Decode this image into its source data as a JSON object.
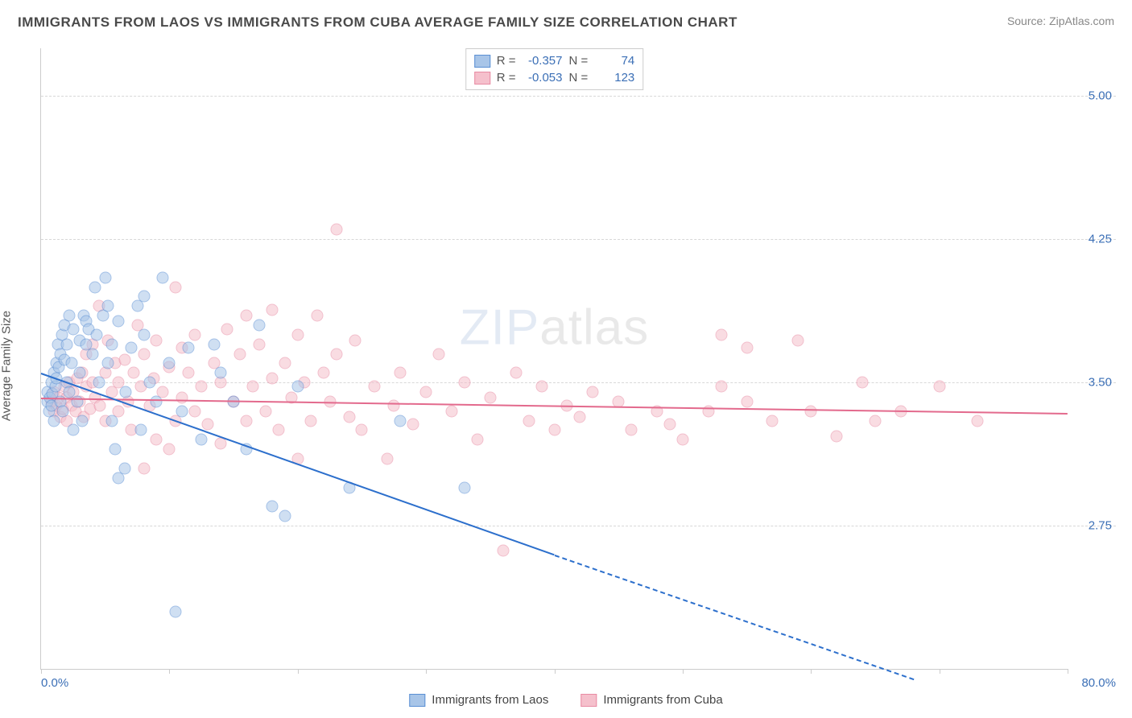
{
  "title": "IMMIGRANTS FROM LAOS VS IMMIGRANTS FROM CUBA AVERAGE FAMILY SIZE CORRELATION CHART",
  "source_prefix": "Source: ",
  "source_name": "ZipAtlas.com",
  "ylabel": "Average Family Size",
  "watermark_a": "ZIP",
  "watermark_b": "atlas",
  "chart": {
    "type": "scatter",
    "xlim": [
      0,
      80
    ],
    "ylim": [
      2.0,
      5.25
    ],
    "xtick_label_left": "0.0%",
    "xtick_label_right": "80.0%",
    "xtick_positions": [
      0,
      10,
      20,
      30,
      40,
      50,
      60,
      70,
      80
    ],
    "ytick_positions": [
      2.75,
      3.5,
      4.25,
      5.0
    ],
    "ytick_labels": [
      "2.75",
      "3.50",
      "4.25",
      "5.00"
    ],
    "grid_color": "#d8d8d8",
    "axis_color": "#cccccc",
    "background_color": "#ffffff",
    "tick_label_color": "#3b6fb6",
    "label_color": "#555555",
    "marker_size": 15,
    "marker_opacity": 0.55
  },
  "series": [
    {
      "name": "Immigrants from Laos",
      "color_fill": "#a8c5e8",
      "color_stroke": "#5a8fd4",
      "trend_color": "#2c6fcc",
      "R": "-0.357",
      "N": "74",
      "trend": {
        "x1": 0,
        "y1": 3.55,
        "x2": 40,
        "y2": 2.6,
        "x2_dash": 68,
        "y2_dash": 1.95
      },
      "points": [
        [
          0.5,
          3.4
        ],
        [
          0.5,
          3.45
        ],
        [
          0.6,
          3.35
        ],
        [
          0.7,
          3.42
        ],
        [
          0.8,
          3.5
        ],
        [
          0.8,
          3.38
        ],
        [
          0.9,
          3.44
        ],
        [
          1.0,
          3.55
        ],
        [
          1.0,
          3.3
        ],
        [
          1.1,
          3.48
        ],
        [
          1.2,
          3.6
        ],
        [
          1.2,
          3.52
        ],
        [
          1.3,
          3.7
        ],
        [
          1.4,
          3.58
        ],
        [
          1.5,
          3.4
        ],
        [
          1.5,
          3.65
        ],
        [
          1.6,
          3.75
        ],
        [
          1.7,
          3.35
        ],
        [
          1.8,
          3.62
        ],
        [
          1.8,
          3.8
        ],
        [
          2.0,
          3.5
        ],
        [
          2.0,
          3.7
        ],
        [
          2.2,
          3.85
        ],
        [
          2.2,
          3.45
        ],
        [
          2.4,
          3.6
        ],
        [
          2.5,
          3.25
        ],
        [
          2.5,
          3.78
        ],
        [
          2.8,
          3.4
        ],
        [
          3.0,
          3.55
        ],
        [
          3.0,
          3.72
        ],
        [
          3.2,
          3.3
        ],
        [
          3.3,
          3.85
        ],
        [
          3.5,
          3.7
        ],
        [
          3.5,
          3.82
        ],
        [
          3.7,
          3.78
        ],
        [
          4.0,
          3.65
        ],
        [
          4.2,
          4.0
        ],
        [
          4.3,
          3.75
        ],
        [
          4.5,
          3.5
        ],
        [
          4.8,
          3.85
        ],
        [
          5.0,
          4.05
        ],
        [
          5.2,
          3.6
        ],
        [
          5.2,
          3.9
        ],
        [
          5.5,
          3.3
        ],
        [
          5.5,
          3.7
        ],
        [
          5.8,
          3.15
        ],
        [
          6.0,
          3.82
        ],
        [
          6.0,
          3.0
        ],
        [
          6.5,
          3.05
        ],
        [
          6.6,
          3.45
        ],
        [
          7.0,
          3.68
        ],
        [
          7.5,
          3.9
        ],
        [
          7.8,
          3.25
        ],
        [
          8.0,
          3.75
        ],
        [
          8.0,
          3.95
        ],
        [
          8.5,
          3.5
        ],
        [
          9.0,
          3.4
        ],
        [
          9.5,
          4.05
        ],
        [
          10.0,
          3.6
        ],
        [
          10.5,
          2.3
        ],
        [
          11.0,
          3.35
        ],
        [
          11.5,
          3.68
        ],
        [
          12.5,
          3.2
        ],
        [
          13.5,
          3.7
        ],
        [
          14.0,
          3.55
        ],
        [
          15.0,
          3.4
        ],
        [
          16.0,
          3.15
        ],
        [
          17.0,
          3.8
        ],
        [
          18.0,
          2.85
        ],
        [
          19.0,
          2.8
        ],
        [
          20.0,
          3.48
        ],
        [
          24.0,
          2.95
        ],
        [
          28.0,
          3.3
        ],
        [
          33.0,
          2.95
        ]
      ]
    },
    {
      "name": "Immigrants from Cuba",
      "color_fill": "#f5c0cc",
      "color_stroke": "#e88ba3",
      "trend_color": "#e36a8d",
      "R": "-0.053",
      "N": "123",
      "trend": {
        "x1": 0,
        "y1": 3.42,
        "x2": 80,
        "y2": 3.34
      },
      "points": [
        [
          0.8,
          3.4
        ],
        [
          1.0,
          3.35
        ],
        [
          1.0,
          3.45
        ],
        [
          1.2,
          3.38
        ],
        [
          1.4,
          3.42
        ],
        [
          1.5,
          3.32
        ],
        [
          1.7,
          3.36
        ],
        [
          1.8,
          3.48
        ],
        [
          2.0,
          3.3
        ],
        [
          2.0,
          3.42
        ],
        [
          2.2,
          3.5
        ],
        [
          2.4,
          3.38
        ],
        [
          2.5,
          3.45
        ],
        [
          2.7,
          3.35
        ],
        [
          2.8,
          3.52
        ],
        [
          3.0,
          3.4
        ],
        [
          3.2,
          3.55
        ],
        [
          3.3,
          3.32
        ],
        [
          3.5,
          3.48
        ],
        [
          3.5,
          3.65
        ],
        [
          3.8,
          3.36
        ],
        [
          4.0,
          3.5
        ],
        [
          4.0,
          3.7
        ],
        [
          4.2,
          3.42
        ],
        [
          4.5,
          3.9
        ],
        [
          4.6,
          3.38
        ],
        [
          5.0,
          3.55
        ],
        [
          5.0,
          3.3
        ],
        [
          5.2,
          3.72
        ],
        [
          5.5,
          3.45
        ],
        [
          5.8,
          3.6
        ],
        [
          6.0,
          3.35
        ],
        [
          6.0,
          3.5
        ],
        [
          6.5,
          3.62
        ],
        [
          6.8,
          3.4
        ],
        [
          7.0,
          3.25
        ],
        [
          7.2,
          3.55
        ],
        [
          7.5,
          3.8
        ],
        [
          7.8,
          3.48
        ],
        [
          8.0,
          3.65
        ],
        [
          8.0,
          3.05
        ],
        [
          8.5,
          3.38
        ],
        [
          8.8,
          3.52
        ],
        [
          9.0,
          3.2
        ],
        [
          9.0,
          3.72
        ],
        [
          9.5,
          3.45
        ],
        [
          10.0,
          3.58
        ],
        [
          10.0,
          3.15
        ],
        [
          10.5,
          3.3
        ],
        [
          10.5,
          4.0
        ],
        [
          11.0,
          3.68
        ],
        [
          11.0,
          3.42
        ],
        [
          11.5,
          3.55
        ],
        [
          12.0,
          3.35
        ],
        [
          12.0,
          3.75
        ],
        [
          12.5,
          3.48
        ],
        [
          13.0,
          3.28
        ],
        [
          13.5,
          3.6
        ],
        [
          14.0,
          3.18
        ],
        [
          14.0,
          3.5
        ],
        [
          14.5,
          3.78
        ],
        [
          15.0,
          3.4
        ],
        [
          15.5,
          3.65
        ],
        [
          16.0,
          3.3
        ],
        [
          16.0,
          3.85
        ],
        [
          16.5,
          3.48
        ],
        [
          17.0,
          3.7
        ],
        [
          17.5,
          3.35
        ],
        [
          18.0,
          3.52
        ],
        [
          18.0,
          3.88
        ],
        [
          18.5,
          3.25
        ],
        [
          19.0,
          3.6
        ],
        [
          19.5,
          3.42
        ],
        [
          20.0,
          3.75
        ],
        [
          20.0,
          3.1
        ],
        [
          20.5,
          3.5
        ],
        [
          21.0,
          3.3
        ],
        [
          21.5,
          3.85
        ],
        [
          22.0,
          3.55
        ],
        [
          22.5,
          3.4
        ],
        [
          23.0,
          4.3
        ],
        [
          23.0,
          3.65
        ],
        [
          24.0,
          3.32
        ],
        [
          24.5,
          3.72
        ],
        [
          25.0,
          3.25
        ],
        [
          26.0,
          3.48
        ],
        [
          27.0,
          3.1
        ],
        [
          27.5,
          3.38
        ],
        [
          28.0,
          3.55
        ],
        [
          29.0,
          3.28
        ],
        [
          30.0,
          3.45
        ],
        [
          31.0,
          3.65
        ],
        [
          32.0,
          3.35
        ],
        [
          33.0,
          3.5
        ],
        [
          34.0,
          3.2
        ],
        [
          35.0,
          3.42
        ],
        [
          36.0,
          2.62
        ],
        [
          37.0,
          3.55
        ],
        [
          38.0,
          3.3
        ],
        [
          39.0,
          3.48
        ],
        [
          40.0,
          3.25
        ],
        [
          41.0,
          3.38
        ],
        [
          42.0,
          3.32
        ],
        [
          43.0,
          3.45
        ],
        [
          45.0,
          3.4
        ],
        [
          46.0,
          3.25
        ],
        [
          48.0,
          3.35
        ],
        [
          49.0,
          3.28
        ],
        [
          50.0,
          3.2
        ],
        [
          52.0,
          3.35
        ],
        [
          53.0,
          3.48
        ],
        [
          53.0,
          3.75
        ],
        [
          55.0,
          3.68
        ],
        [
          55.0,
          3.4
        ],
        [
          57.0,
          3.3
        ],
        [
          59.0,
          3.72
        ],
        [
          60.0,
          3.35
        ],
        [
          62.0,
          3.22
        ],
        [
          64.0,
          3.5
        ],
        [
          65.0,
          3.3
        ],
        [
          67.0,
          3.35
        ],
        [
          70.0,
          3.48
        ],
        [
          73.0,
          3.3
        ]
      ]
    }
  ],
  "legend": {
    "R_label": "R =",
    "N_label": "N ="
  }
}
